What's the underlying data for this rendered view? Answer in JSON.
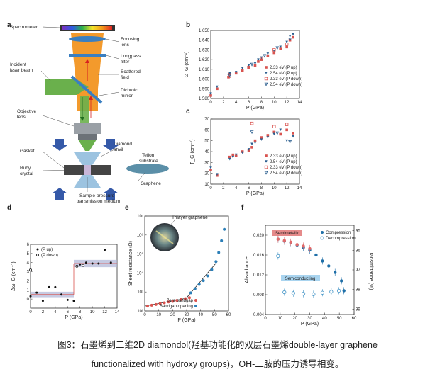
{
  "panels": {
    "a": {
      "letter": "a",
      "labels": {
        "spectrometer": "Spectrometer",
        "focusing_lens": [
          "Focusing",
          "lens"
        ],
        "longpass": [
          "Longpass",
          "filter"
        ],
        "scattered": [
          "Scattered",
          "field"
        ],
        "incident": [
          "Incident",
          "laser beam"
        ],
        "dichroic": [
          "Dichroic",
          "mirror"
        ],
        "objective": [
          "Objective",
          "lens"
        ],
        "diamond": [
          "Diamond",
          "anvil"
        ],
        "gasket": "Gasket",
        "teflon": [
          "Teflon",
          "substrate"
        ],
        "ruby": [
          "Ruby",
          "crystal"
        ],
        "graphene": "Graphene",
        "sample": [
          "Sample pressure",
          "transmission  medium"
        ]
      }
    },
    "b": {
      "letter": "b",
      "chart_data": {
        "type": "scatter",
        "ylabel": "ω_G (cm⁻¹)",
        "xlabel": "P (GPa)",
        "xlim": [
          0,
          14
        ],
        "ylim": [
          1580,
          1650
        ],
        "xticks": [
          "0",
          "2",
          "4",
          "6",
          "8",
          "10",
          "12",
          "14"
        ],
        "yticks": [
          "1,580",
          "1,590",
          "1,600",
          "1,610",
          "1,620",
          "1,630",
          "1,640",
          "1,650"
        ],
        "legend_position": "right",
        "series": [
          {
            "name": "2.33 eV (P up)",
            "color": "#d9534f",
            "marker": "square",
            "x": [
              0,
              1,
              2.8,
              3,
              4,
              5,
              6,
              7,
              7.5,
              8,
              9,
              10,
              11,
              12,
              12.5,
              13
            ],
            "y": [
              1583,
              1590,
              1602,
              1605,
              1606,
              1609,
              1612,
              1614,
              1618,
              1620,
              1624,
              1627,
              1631,
              1633,
              1640,
              1643
            ]
          },
          {
            "name": "2.54 eV (P up)",
            "color": "#2c5f8f",
            "marker": "triangle-down",
            "x": [
              0,
              1,
              2.8,
              3,
              4,
              5,
              6,
              7,
              7.5,
              8,
              9,
              10,
              11,
              12,
              12.5,
              13
            ],
            "y": [
              1585,
              1592,
              1604,
              1606,
              1607,
              1611,
              1614,
              1616,
              1620,
              1622,
              1626,
              1629,
              1633,
              1638,
              1644,
              1646
            ]
          },
          {
            "name": "2.33 eV (P down)",
            "color": "#d9534f",
            "marker": "square-open",
            "x": [
              12,
              10,
              8,
              6,
              3
            ],
            "y": [
              1636,
              1630,
              1621,
              1612,
              1603
            ]
          },
          {
            "name": "2.54 eV (P down)",
            "color": "#2c5f8f",
            "marker": "triangle-down-open",
            "x": [
              12.5,
              10.5,
              8.5,
              6.5,
              3
            ],
            "y": [
              1641,
              1632,
              1624,
              1615,
              1604
            ]
          }
        ]
      }
    },
    "c": {
      "letter": "c",
      "chart_data": {
        "type": "scatter",
        "ylabel": "Γ_G (cm⁻¹)",
        "xlabel": "P (GPa)",
        "xlim": [
          0,
          14
        ],
        "ylim": [
          10,
          70
        ],
        "xticks": [
          "0",
          "2",
          "4",
          "6",
          "8",
          "10",
          "12",
          "14"
        ],
        "yticks": [
          "10",
          "20",
          "30",
          "40",
          "50",
          "60",
          "70"
        ],
        "legend_position": "right",
        "series": [
          {
            "name": "2.33 eV (P up)",
            "color": "#d9534f",
            "marker": "square",
            "x": [
              0,
              1,
              3,
              3.5,
              4,
              5,
              6,
              6.5,
              7,
              8,
              9,
              10,
              11,
              12,
              13
            ],
            "y": [
              23,
              18,
              35,
              37,
              36,
              40,
              41,
              44,
              50,
              53,
              55,
              58,
              56,
              60,
              57
            ]
          },
          {
            "name": "2.54 eV (P up)",
            "color": "#2c5f8f",
            "marker": "triangle-down",
            "x": [
              0,
              1,
              3,
              3.5,
              4,
              5,
              6,
              6.5,
              7,
              8,
              9,
              10,
              11,
              12,
              13
            ],
            "y": [
              25,
              19,
              33,
              35,
              37,
              39,
              42,
              47,
              48,
              51,
              53,
              56,
              60,
              50,
              54
            ]
          },
          {
            "name": "2.33 eV (P down)",
            "color": "#d9534f",
            "marker": "square-open",
            "x": [
              12,
              10,
              6.5
            ],
            "y": [
              65,
              63,
              66
            ]
          },
          {
            "name": "2.54 eV (P down)",
            "color": "#2c5f8f",
            "marker": "triangle-down-open",
            "x": [
              12.5,
              10.5,
              6.5
            ],
            "y": [
              49,
              57,
              58
            ]
          }
        ]
      }
    },
    "d": {
      "letter": "d",
      "chart_data": {
        "type": "scatter",
        "ylabel": "Δω_G (cm⁻¹)",
        "xlabel": "P (GPa)",
        "xlim": [
          0,
          14
        ],
        "ylim": [
          -1,
          6
        ],
        "xticks": [
          "0",
          "2",
          "4",
          "6",
          "8",
          "10",
          "12",
          "14"
        ],
        "yticks": [
          "0",
          "1",
          "2",
          "3",
          "4",
          "5",
          "6"
        ],
        "legend_position": "top-left",
        "series": [
          {
            "name": "(P up)",
            "color": "#111111",
            "marker": "circle",
            "x": [
              0,
              1,
              2,
              3,
              4,
              5,
              6,
              7,
              8,
              9,
              10,
              11,
              12,
              13
            ],
            "y": [
              0.3,
              0.7,
              -0.2,
              1.3,
              1.3,
              0.5,
              -0.1,
              -0.2,
              3.8,
              4.0,
              3.9,
              3.9,
              5.4,
              4.0
            ]
          },
          {
            "name": "(P down)",
            "color": "#111111",
            "marker": "circle-open",
            "x": [
              0,
              7.5,
              8.5
            ],
            "y": [
              3.2,
              3.6,
              3.7
            ]
          }
        ],
        "bands": [
          {
            "x": [
              0,
              7
            ],
            "y": [
              0.2,
              0.8
            ]
          },
          {
            "x": [
              7,
              14
            ],
            "y": [
              3.5,
              4.3
            ]
          }
        ]
      }
    },
    "e": {
      "letter": "e",
      "inset_title": "Trilayer graphene",
      "chart_data": {
        "type": "scatter",
        "ylabel": "Sheet resistance (Ω)",
        "xlabel": "P (GPa)",
        "log_y": true,
        "xlim": [
          0,
          60
        ],
        "ylim_exp": [
          2,
          7
        ],
        "xticks": [
          "0",
          "10",
          "20",
          "30",
          "40",
          "50",
          "60"
        ],
        "yticks": [
          "10²",
          "10³",
          "10⁴",
          "10⁵",
          "10⁶",
          "10⁷"
        ],
        "legend_position": "bottom-right",
        "series": [
          {
            "name": "Zero bandgap",
            "color": "#d9534f",
            "marker": "circle",
            "x": [
              2,
              5,
              8,
              11,
              14,
              17,
              20,
              23,
              26,
              29,
              32
            ],
            "y": [
              180,
              200,
              220,
              250,
              270,
              300,
              320,
              360,
              400,
              450,
              500
            ]
          },
          {
            "name": "Bandgap opening",
            "color": "#2c7fb8",
            "marker": "circle",
            "x": [
              33,
              36,
              39,
              42,
              45,
              48,
              51,
              53,
              55,
              57
            ],
            "y": [
              900,
              1500,
              2500,
              4000,
              7000,
              15000,
              40000,
              120000,
              500000,
              2000000
            ]
          }
        ]
      }
    },
    "f": {
      "letter": "f",
      "chart_data": {
        "type": "scatter",
        "ylabel": "Absorbance",
        "ylabel_right": "Transmittance (%)",
        "xlabel": "P (GPa)",
        "xlim": [
          -10,
          60
        ],
        "ylim": [
          0.004,
          0.022
        ],
        "xticks": [
          "0",
          "10",
          "20",
          "30",
          "40",
          "50",
          "60"
        ],
        "yticks": [
          "0.004",
          "0.008",
          "0.012",
          "0.016",
          "0.020"
        ],
        "yticks_right": [
          "99",
          "98",
          "97",
          "96",
          "95"
        ],
        "legend_position": "top-right",
        "annotations": [
          "Semimetallic",
          "Semiconducting"
        ],
        "series": [
          {
            "name": "Compression",
            "color": "#1f6fa8",
            "marker": "circle",
            "x": [
              0,
              5,
              10,
              15,
              20,
              25,
              30,
              35,
              40,
              45,
              50,
              52
            ],
            "y": [
              0.0192,
              0.0188,
              0.0185,
              0.018,
              0.0175,
              0.017,
              0.016,
              0.0148,
              0.0138,
              0.0125,
              0.0108,
              0.0088
            ]
          },
          {
            "name": "Compression (semimetallic)",
            "color": "#e26a6a",
            "marker": "circle",
            "x": [
              0,
              5,
              10,
              15,
              20,
              25
            ],
            "y": [
              0.0192,
              0.0189,
              0.0186,
              0.0181,
              0.0178,
              0.0173
            ]
          },
          {
            "name": "Decompression",
            "color": "#3a8fc4",
            "marker": "circle-open",
            "x": [
              0,
              5,
              12,
              20,
              28,
              35,
              42,
              48
            ],
            "y": [
              0.0158,
              0.0085,
              0.0083,
              0.0082,
              0.0081,
              0.0084,
              0.0086,
              0.0088
            ]
          }
        ]
      }
    }
  },
  "caption": {
    "line1": "图3：石墨烯到二维2D diamondol(羟基功能化的双层石墨烯double-layer graphene",
    "line2": "functionalized with hydroxy groups)，OH-二胺的压力诱导相变。"
  }
}
